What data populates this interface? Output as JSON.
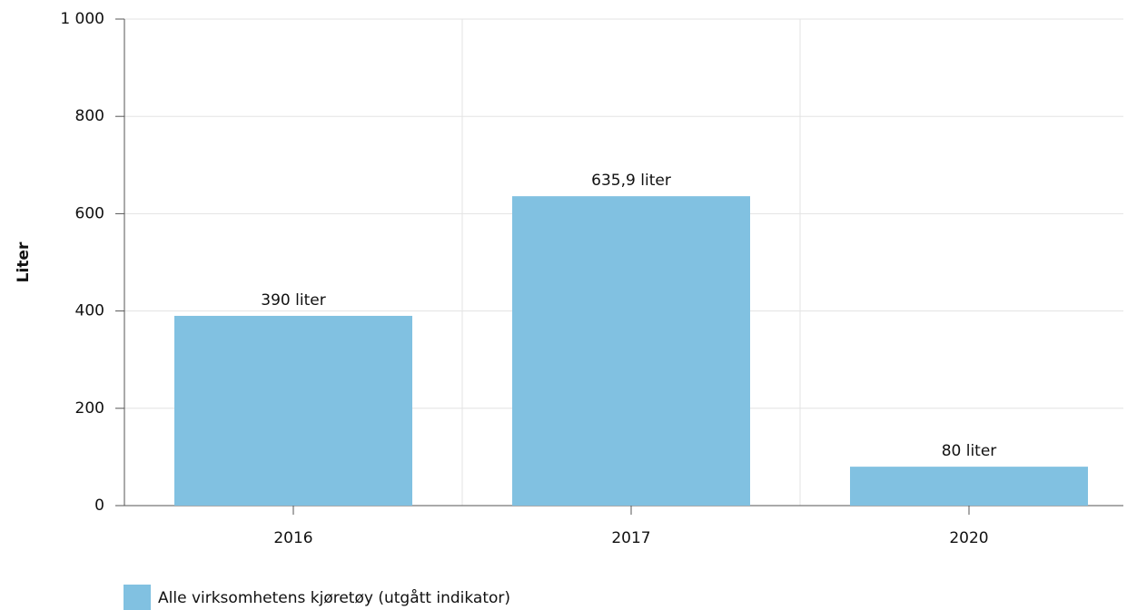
{
  "chart_data": {
    "type": "bar",
    "y_label": "Liter",
    "categories": [
      "2016",
      "2017",
      "2020"
    ],
    "series": [
      {
        "name": "Alle virksomhetens kjøretøy (utgått indikator)",
        "color": "#81c1e1",
        "values": [
          390,
          635.9,
          80
        ],
        "value_labels": [
          "390 liter",
          "635,9 liter",
          "80 liter"
        ]
      }
    ],
    "ylim": [
      0,
      1000
    ],
    "yticks": [
      0,
      200,
      400,
      600,
      800,
      {
        "value": 1000,
        "label": "1 000"
      }
    ],
    "grid": true,
    "legend": "bottom-left"
  }
}
